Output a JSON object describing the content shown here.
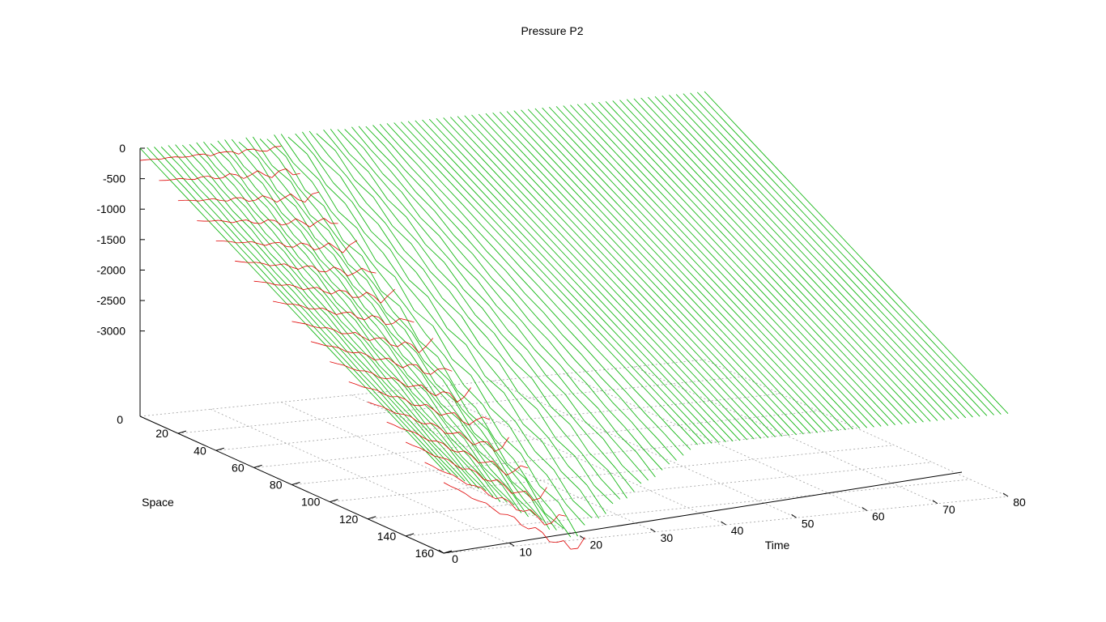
{
  "chart_data": {
    "type": "surface-3d",
    "title": "Pressure P2",
    "xlabel": "Time",
    "ylabel": "Space",
    "zlabel": "",
    "xlim": [
      0,
      80
    ],
    "ylim": [
      0,
      160
    ],
    "zlim": [
      -4400,
      0
    ],
    "x_ticks": [
      0,
      10,
      20,
      30,
      40,
      50,
      60,
      70,
      80
    ],
    "y_ticks": [
      20,
      40,
      60,
      80,
      100,
      120,
      140,
      160
    ],
    "z_ticks": [
      0,
      -500,
      -1000,
      -1500,
      -2000,
      -2500,
      -3000
    ],
    "z_base_label": "0",
    "grid": true,
    "colors": {
      "top": "#00b000",
      "bottom": "#e00000",
      "axis": "#000000",
      "grid": "#a0a0a0"
    },
    "surface_description": [
      {
        "time": 0,
        "space_at_zero": 0,
        "pressure_min": -3000
      },
      {
        "time": 20,
        "pressure_front_min": -4350
      },
      {
        "time": 80,
        "pressure_min": -3000
      }
    ]
  }
}
